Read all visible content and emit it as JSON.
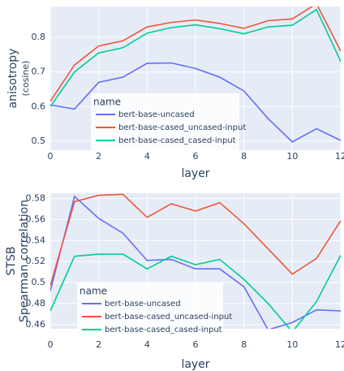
{
  "chart_data": [
    {
      "type": "line",
      "ylabel": "anisotropy",
      "ylabel_sub": "(cosine)",
      "xlabel": "layer",
      "legend_title": "name",
      "legend": "lower-left",
      "grid": true,
      "x": [
        0,
        1,
        2,
        3,
        4,
        5,
        6,
        7,
        8,
        9,
        10,
        11,
        12
      ],
      "xlim": [
        0,
        12
      ],
      "xticks": [
        0,
        2,
        4,
        6,
        8,
        10,
        12
      ],
      "ylim": [
        0.474,
        0.889
      ],
      "yticks": [
        0.5,
        0.6,
        0.7,
        0.8
      ],
      "series": [
        {
          "name": "bert-base-uncased",
          "color": "#636efa",
          "values": [
            0.605,
            0.593,
            0.67,
            0.685,
            0.725,
            0.726,
            0.71,
            0.685,
            0.645,
            0.565,
            0.498,
            0.536,
            0.502
          ]
        },
        {
          "name": "bert-base-cased_uncased-input",
          "color": "#ef553b",
          "values": [
            0.615,
            0.72,
            0.775,
            0.79,
            0.83,
            0.843,
            0.85,
            0.84,
            0.826,
            0.848,
            0.853,
            0.897,
            0.76
          ]
        },
        {
          "name": "bert-base-cased_cased-input",
          "color": "#00cc96",
          "values": [
            0.6,
            0.7,
            0.755,
            0.77,
            0.812,
            0.828,
            0.836,
            0.825,
            0.81,
            0.83,
            0.835,
            0.88,
            0.73
          ]
        }
      ]
    },
    {
      "type": "line",
      "ylabel": "STSB",
      "ylabel_sub": "Spearman correlation",
      "xlabel": "layer",
      "legend_title": "name",
      "legend": "lower-left",
      "grid": true,
      "x": [
        0,
        1,
        2,
        3,
        4,
        5,
        6,
        7,
        8,
        9,
        10,
        11,
        12
      ],
      "xlim": [
        0,
        12
      ],
      "xticks": [
        0,
        2,
        4,
        6,
        8,
        10,
        12
      ],
      "ylim": [
        0.456,
        0.585
      ],
      "yticks": [
        0.46,
        0.48,
        0.5,
        0.52,
        0.54,
        0.56,
        0.58
      ],
      "series": [
        {
          "name": "bert-base-uncased",
          "color": "#636efa",
          "values": [
            0.492,
            0.582,
            0.561,
            0.547,
            0.521,
            0.522,
            0.513,
            0.513,
            0.496,
            0.455,
            0.462,
            0.474,
            0.473
          ]
        },
        {
          "name": "bert-base-cased_uncased-input",
          "color": "#ef553b",
          "values": [
            0.497,
            0.577,
            0.583,
            0.584,
            0.562,
            0.575,
            0.568,
            0.576,
            0.556,
            0.532,
            0.508,
            0.523,
            0.559
          ]
        },
        {
          "name": "bert-base-cased_cased-input",
          "color": "#00cc96",
          "values": [
            0.473,
            0.525,
            0.527,
            0.527,
            0.513,
            0.525,
            0.517,
            0.522,
            0.503,
            0.48,
            0.453,
            0.482,
            0.526
          ]
        }
      ]
    }
  ]
}
